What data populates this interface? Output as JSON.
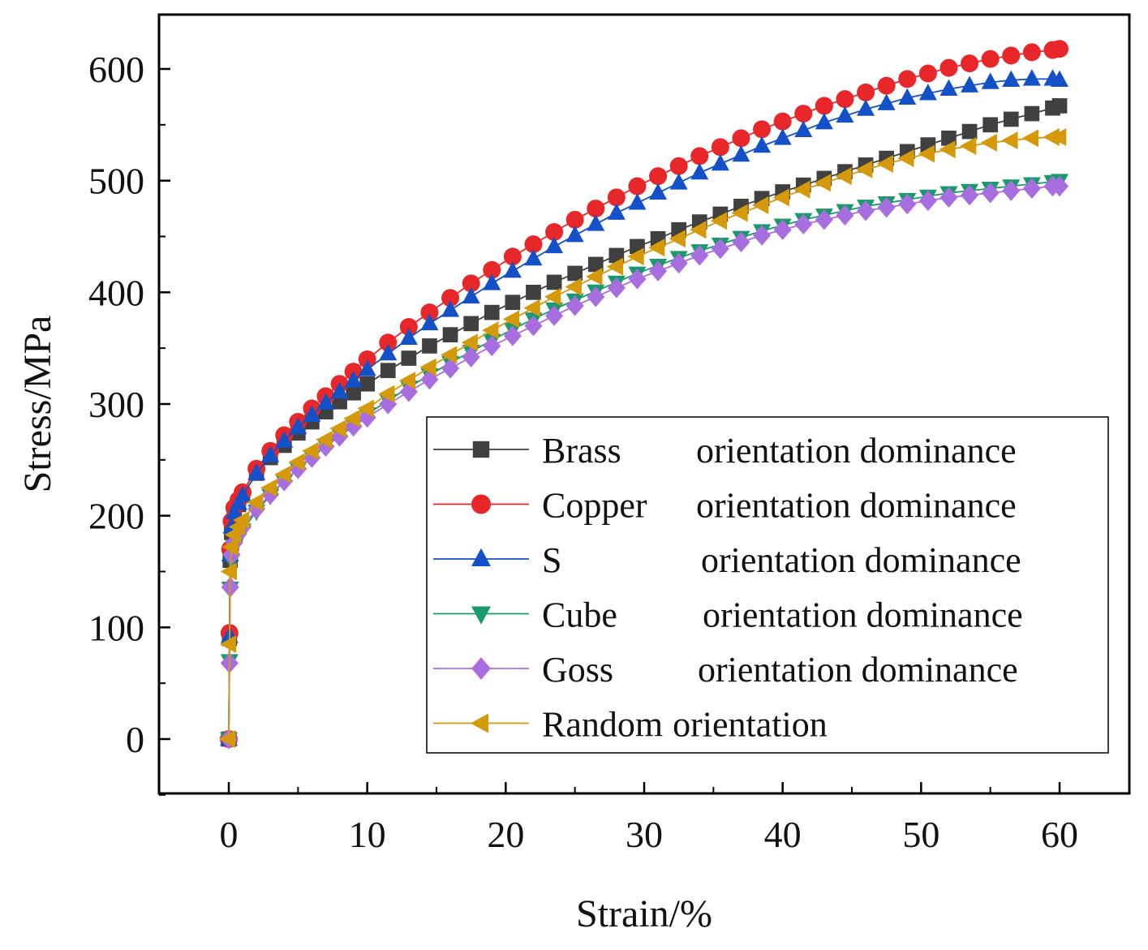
{
  "chart_data": {
    "type": "line",
    "title": "",
    "xlabel": "Strain/%",
    "ylabel": "Stress/MPa",
    "xlim": [
      -5,
      65
    ],
    "ylim": [
      -50,
      650
    ],
    "xticks": [
      0,
      10,
      20,
      30,
      40,
      50,
      60
    ],
    "yticks": [
      0,
      100,
      200,
      300,
      400,
      500,
      600
    ],
    "grid": false,
    "legend_position": "bottom-right",
    "series": [
      {
        "name": "Brass",
        "label_suffix": "orientation dominance",
        "color": "#404040",
        "marker": "square",
        "x": [
          0,
          0.05,
          0.1,
          0.2,
          0.4,
          0.7,
          1,
          2,
          3,
          4,
          5,
          6,
          7,
          8,
          9,
          10,
          11.5,
          13,
          14.5,
          16,
          17.5,
          19,
          20.5,
          22,
          23.5,
          25,
          26.5,
          28,
          29.5,
          31,
          32.5,
          34,
          35.5,
          37,
          38.5,
          40,
          41.5,
          43,
          44.5,
          46,
          47.5,
          49,
          50.5,
          52,
          53.5,
          55,
          56.5,
          58,
          59.5,
          60
        ],
        "values": [
          0,
          90,
          160,
          185,
          200,
          210,
          218,
          238,
          252,
          263,
          274,
          284,
          293,
          302,
          310,
          318,
          330,
          341,
          352,
          362,
          372,
          382,
          391,
          400,
          409,
          417,
          425,
          433,
          441,
          448,
          456,
          463,
          470,
          477,
          484,
          490,
          496,
          502,
          508,
          514,
          520,
          526,
          532,
          538,
          544,
          550,
          555,
          560,
          565,
          567
        ]
      },
      {
        "name": "Copper",
        "label_suffix": "orientation dominance",
        "color": "#e8272a",
        "marker": "circle",
        "x": [
          0,
          0.05,
          0.1,
          0.2,
          0.4,
          0.7,
          1,
          2,
          3,
          4,
          5,
          6,
          7,
          8,
          9,
          10,
          11.5,
          13,
          14.5,
          16,
          17.5,
          19,
          20.5,
          22,
          23.5,
          25,
          26.5,
          28,
          29.5,
          31,
          32.5,
          34,
          35.5,
          37,
          38.5,
          40,
          41.5,
          43,
          44.5,
          46,
          47.5,
          49,
          50.5,
          52,
          53.5,
          55,
          56.5,
          58,
          59.5,
          60
        ],
        "values": [
          0,
          95,
          170,
          195,
          207,
          214,
          221,
          242,
          258,
          272,
          284,
          296,
          307,
          318,
          329,
          340,
          355,
          369,
          382,
          395,
          408,
          420,
          432,
          443,
          454,
          465,
          475,
          485,
          495,
          504,
          513,
          522,
          530,
          538,
          546,
          553,
          560,
          567,
          573,
          579,
          585,
          591,
          596,
          601,
          605,
          609,
          612,
          615,
          617,
          618
        ]
      },
      {
        "name": "S",
        "label_suffix": "orientation dominance",
        "color": "#1450c8",
        "marker": "triangle-up",
        "x": [
          0,
          0.05,
          0.1,
          0.2,
          0.4,
          0.7,
          1,
          2,
          3,
          4,
          5,
          6,
          7,
          8,
          9,
          10,
          11.5,
          13,
          14.5,
          16,
          17.5,
          19,
          20.5,
          22,
          23.5,
          25,
          26.5,
          28,
          29.5,
          31,
          32.5,
          34,
          35.5,
          37,
          38.5,
          40,
          41.5,
          43,
          44.5,
          46,
          47.5,
          49,
          50.5,
          52,
          53.5,
          55,
          56.5,
          58,
          59.5,
          60
        ],
        "values": [
          0,
          92,
          165,
          190,
          203,
          211,
          218,
          238,
          254,
          267,
          279,
          290,
          301,
          311,
          321,
          331,
          345,
          359,
          372,
          384,
          396,
          408,
          419,
          430,
          441,
          451,
          461,
          471,
          480,
          489,
          498,
          507,
          515,
          523,
          531,
          538,
          545,
          552,
          558,
          564,
          569,
          574,
          578,
          582,
          585,
          588,
          590,
          591,
          591,
          590
        ]
      },
      {
        "name": "Cube",
        "label_suffix": "orientation dominance",
        "color": "#1a9a6c",
        "marker": "triangle-down",
        "x": [
          0,
          0.05,
          0.1,
          0.2,
          0.4,
          0.7,
          1,
          2,
          3,
          4,
          5,
          6,
          7,
          8,
          9,
          10,
          11.5,
          13,
          14.5,
          16,
          17.5,
          19,
          20.5,
          22,
          23.5,
          25,
          26.5,
          28,
          29.5,
          31,
          32.5,
          34,
          35.5,
          37,
          38.5,
          40,
          41.5,
          43,
          44.5,
          46,
          47.5,
          49,
          50.5,
          52,
          53.5,
          55,
          56.5,
          58,
          59.5,
          60
        ],
        "values": [
          0,
          70,
          135,
          160,
          172,
          180,
          187,
          204,
          218,
          231,
          242,
          253,
          263,
          273,
          282,
          291,
          303,
          315,
          326,
          337,
          347,
          357,
          367,
          376,
          385,
          393,
          401,
          409,
          417,
          424,
          431,
          437,
          443,
          449,
          455,
          460,
          465,
          469,
          473,
          477,
          480,
          483,
          486,
          489,
          491,
          493,
          495,
          497,
          499,
          500
        ]
      },
      {
        "name": "Goss",
        "label_suffix": "orientation dominance",
        "color": "#a86ee0",
        "marker": "diamond",
        "x": [
          0,
          0.05,
          0.1,
          0.2,
          0.4,
          0.7,
          1,
          2,
          3,
          4,
          5,
          6,
          7,
          8,
          9,
          10,
          11.5,
          13,
          14.5,
          16,
          17.5,
          19,
          20.5,
          22,
          23.5,
          25,
          26.5,
          28,
          29.5,
          31,
          32.5,
          34,
          35.5,
          37,
          38.5,
          40,
          41.5,
          43,
          44.5,
          46,
          47.5,
          49,
          50.5,
          52,
          53.5,
          55,
          56.5,
          58,
          59.5,
          60
        ],
        "values": [
          0,
          68,
          136,
          165,
          176,
          184,
          190,
          206,
          219,
          231,
          242,
          252,
          262,
          271,
          280,
          288,
          300,
          311,
          322,
          332,
          342,
          352,
          361,
          370,
          379,
          388,
          396,
          404,
          412,
          419,
          426,
          433,
          439,
          445,
          451,
          456,
          461,
          465,
          469,
          473,
          476,
          479,
          482,
          485,
          487,
          489,
          491,
          493,
          495,
          495
        ]
      },
      {
        "name": "Random",
        "label_suffix": "orientation",
        "color": "#d49a0c",
        "marker": "triangle-left",
        "x": [
          0,
          0.05,
          0.1,
          0.2,
          0.4,
          0.7,
          1,
          2,
          3,
          4,
          5,
          6,
          7,
          8,
          9,
          10,
          11.5,
          13,
          14.5,
          16,
          17.5,
          19,
          20.5,
          22,
          23.5,
          25,
          26.5,
          28,
          29.5,
          31,
          32.5,
          34,
          35.5,
          37,
          38.5,
          40,
          41.5,
          43,
          44.5,
          46,
          47.5,
          49,
          50.5,
          52,
          53.5,
          55,
          56.5,
          58,
          59.5,
          60
        ],
        "values": [
          0,
          85,
          150,
          172,
          183,
          190,
          196,
          212,
          225,
          237,
          248,
          258,
          268,
          278,
          287,
          296,
          309,
          321,
          333,
          344,
          355,
          366,
          376,
          386,
          396,
          405,
          414,
          423,
          432,
          440,
          448,
          456,
          464,
          471,
          478,
          485,
          492,
          498,
          504,
          510,
          515,
          520,
          524,
          528,
          531,
          534,
          536,
          538,
          539,
          539
        ]
      }
    ]
  }
}
